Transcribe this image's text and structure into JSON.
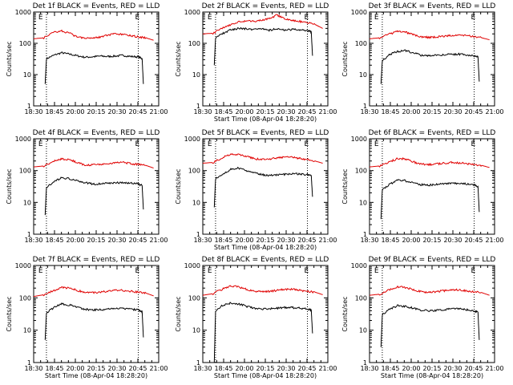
{
  "panels": [
    {
      "title": "Det 1f BLACK = Events, RED = LLD",
      "ylabel": "Counts/sec",
      "xlabel": "",
      "flag": "E"
    },
    {
      "title": "Det 2f BLACK = Events, RED = LLD",
      "ylabel": "Counts/sec",
      "xlabel": "Start Time (08-Apr-04 18:28:20)",
      "flag": "E"
    },
    {
      "title": "Det 3f BLACK = Events, RED = LLD",
      "ylabel": "Counts/sec",
      "xlabel": "",
      "flag": "E"
    },
    {
      "title": "Det 4f BLACK = Events, RED = LLD",
      "ylabel": "Counts/sec",
      "xlabel": "",
      "flag": "E"
    },
    {
      "title": "Det 5f BLACK = Events, RED = LLD",
      "ylabel": "Counts/sec",
      "xlabel": "Start Time (08-Apr-04 18:28:20)",
      "flag": "E"
    },
    {
      "title": "Det 6f BLACK = Events, RED = LLD",
      "ylabel": "Counts/sec",
      "xlabel": "",
      "flag": "E"
    },
    {
      "title": "Det 7f BLACK = Events, RED = LLD",
      "ylabel": "Counts/sec",
      "xlabel": "Start Time (08-Apr-04 18:28:20)",
      "flag": "E"
    },
    {
      "title": "Det 8f BLACK = Events, RED = LLD",
      "ylabel": "Counts/sec",
      "xlabel": "Start Time (08-Apr-04 18:28:20)",
      "flag": "E"
    },
    {
      "title": "Det 9f BLACK = Events, RED = LLD",
      "ylabel": "Counts/sec",
      "xlabel": "Start Time (08-Apr-04 18:28:20)",
      "flag": "E"
    }
  ],
  "colors": {
    "events": "#000000",
    "lld": "#e00000",
    "axes": "#000000"
  },
  "chart_data": {
    "type": "line",
    "layout": "3x3 grid",
    "x_ticks": [
      "18:30",
      "18:45",
      "20:00",
      "20:15",
      "20:30",
      "20:45",
      "21:00"
    ],
    "x_range_minutes": [
      -2,
      47
    ],
    "y_scale": "log",
    "ylim": [
      1,
      1000
    ],
    "y_ticks": [
      "1",
      "10",
      "100",
      "1000"
    ],
    "grid": false,
    "vlines_minutes": [
      3,
      39
    ],
    "panels": [
      {
        "name": "Det 1f",
        "series": [
          {
            "name": "Events",
            "x": [
              2.5,
              3,
              6,
              9,
              12,
              15,
              18,
              21,
              24,
              27,
              30,
              33,
              36,
              39,
              40.5,
              41
            ],
            "y": [
              5,
              32,
              42,
              50,
              45,
              40,
              36,
              37,
              39,
              38,
              39,
              41,
              38,
              37,
              32,
              5
            ]
          },
          {
            "name": "LLD",
            "x": [
              -2,
              2,
              6,
              9,
              12,
              15,
              18,
              21,
              24,
              27,
              30,
              33,
              36,
              39,
              42,
              45
            ],
            "y": [
              140,
              150,
              230,
              250,
              210,
              160,
              150,
              150,
              160,
              180,
              200,
              190,
              175,
              160,
              150,
              125
            ]
          }
        ]
      },
      {
        "name": "Det 2f",
        "series": [
          {
            "name": "Events",
            "x": [
              2.5,
              3,
              6,
              9,
              12,
              15,
              18,
              21,
              24,
              27,
              30,
              33,
              36,
              39,
              40.5,
              41
            ],
            "y": [
              20,
              150,
              210,
              270,
              300,
              290,
              280,
              300,
              260,
              300,
              260,
              280,
              260,
              260,
              230,
              40
            ]
          },
          {
            "name": "LLD",
            "x": [
              -2,
              2,
              6,
              9,
              12,
              15,
              18,
              21,
              24,
              27,
              30,
              33,
              36,
              39,
              42,
              45
            ],
            "y": [
              200,
              210,
              320,
              400,
              480,
              520,
              500,
              560,
              600,
              800,
              600,
              550,
              500,
              460,
              400,
              300
            ]
          }
        ]
      },
      {
        "name": "Det 3f",
        "series": [
          {
            "name": "Events",
            "x": [
              2.5,
              3,
              6,
              9,
              12,
              15,
              18,
              21,
              24,
              27,
              30,
              33,
              36,
              39,
              40.5,
              41
            ],
            "y": [
              5,
              28,
              45,
              55,
              58,
              50,
              42,
              40,
              42,
              43,
              44,
              45,
              43,
              40,
              37,
              6
            ]
          },
          {
            "name": "LLD",
            "x": [
              -2,
              2,
              6,
              9,
              12,
              15,
              18,
              21,
              24,
              27,
              30,
              33,
              36,
              39,
              42,
              45
            ],
            "y": [
              140,
              150,
              200,
              240,
              230,
              190,
              160,
              155,
              160,
              170,
              180,
              185,
              175,
              165,
              150,
              130
            ]
          }
        ]
      },
      {
        "name": "Det 4f",
        "series": [
          {
            "name": "Events",
            "x": [
              2.5,
              3,
              6,
              9,
              12,
              15,
              18,
              21,
              24,
              27,
              30,
              33,
              36,
              39,
              40.5,
              41
            ],
            "y": [
              4,
              30,
              45,
              60,
              55,
              48,
              42,
              38,
              38,
              40,
              41,
              42,
              40,
              38,
              34,
              6
            ]
          },
          {
            "name": "LLD",
            "x": [
              -2,
              2,
              6,
              9,
              12,
              15,
              18,
              21,
              24,
              27,
              30,
              33,
              36,
              39,
              42,
              45
            ],
            "y": [
              130,
              140,
              200,
              230,
              220,
              180,
              150,
              150,
              155,
              165,
              175,
              180,
              165,
              155,
              145,
              120
            ]
          }
        ]
      },
      {
        "name": "Det 5f",
        "series": [
          {
            "name": "Events",
            "x": [
              2.5,
              3,
              6,
              9,
              12,
              15,
              18,
              21,
              24,
              27,
              30,
              33,
              36,
              39,
              40.5,
              41
            ],
            "y": [
              7,
              55,
              80,
              110,
              120,
              100,
              85,
              75,
              70,
              72,
              75,
              80,
              78,
              75,
              70,
              15
            ]
          },
          {
            "name": "LLD",
            "x": [
              -2,
              2,
              6,
              9,
              12,
              15,
              18,
              21,
              24,
              27,
              30,
              33,
              36,
              39,
              42,
              45
            ],
            "y": [
              170,
              180,
              260,
              320,
              320,
              280,
              240,
              220,
              230,
              250,
              270,
              260,
              240,
              220,
              200,
              170
            ]
          }
        ]
      },
      {
        "name": "Det 6f",
        "series": [
          {
            "name": "Events",
            "x": [
              2.5,
              3,
              6,
              9,
              12,
              15,
              18,
              21,
              24,
              27,
              30,
              33,
              36,
              39,
              40.5,
              41
            ],
            "y": [
              3,
              25,
              38,
              50,
              48,
              42,
              36,
              35,
              36,
              38,
              40,
              40,
              38,
              36,
              32,
              5
            ]
          },
          {
            "name": "LLD",
            "x": [
              -2,
              2,
              6,
              9,
              12,
              15,
              18,
              21,
              24,
              27,
              30,
              33,
              36,
              39,
              42,
              45
            ],
            "y": [
              130,
              140,
              190,
              240,
              230,
              190,
              160,
              155,
              160,
              170,
              180,
              175,
              165,
              155,
              145,
              125
            ]
          }
        ]
      },
      {
        "name": "Det 7f",
        "series": [
          {
            "name": "Events",
            "x": [
              2.5,
              3,
              6,
              9,
              12,
              15,
              18,
              21,
              24,
              27,
              30,
              33,
              36,
              39,
              40.5,
              41
            ],
            "y": [
              5,
              35,
              50,
              65,
              60,
              52,
              45,
              42,
              43,
              45,
              47,
              48,
              45,
              42,
              38,
              6
            ]
          },
          {
            "name": "LLD",
            "x": [
              -2,
              2,
              6,
              9,
              12,
              15,
              18,
              21,
              24,
              27,
              30,
              33,
              36,
              39,
              42,
              45
            ],
            "y": [
              110,
              125,
              170,
              210,
              200,
              170,
              150,
              145,
              150,
              160,
              170,
              170,
              160,
              150,
              140,
              115
            ]
          }
        ]
      },
      {
        "name": "Det 8f",
        "series": [
          {
            "name": "Events",
            "x": [
              2.5,
              3,
              6,
              9,
              12,
              15,
              18,
              21,
              24,
              27,
              30,
              33,
              36,
              39,
              40.5,
              41
            ],
            "y": [
              1,
              40,
              60,
              70,
              65,
              55,
              48,
              45,
              46,
              48,
              50,
              50,
              48,
              45,
              42,
              8
            ]
          },
          {
            "name": "LLD",
            "x": [
              -2,
              2,
              6,
              9,
              12,
              15,
              18,
              21,
              24,
              27,
              30,
              33,
              36,
              39,
              42,
              45
            ],
            "y": [
              120,
              135,
              190,
              230,
              220,
              185,
              160,
              155,
              160,
              170,
              185,
              185,
              170,
              160,
              150,
              125
            ]
          }
        ]
      },
      {
        "name": "Det 9f",
        "series": [
          {
            "name": "Events",
            "x": [
              2.5,
              3,
              6,
              9,
              12,
              15,
              18,
              21,
              24,
              27,
              30,
              33,
              36,
              39,
              40.5,
              41
            ],
            "y": [
              3,
              30,
              45,
              58,
              55,
              48,
              42,
              40,
              41,
              43,
              45,
              46,
              43,
              40,
              36,
              5
            ]
          },
          {
            "name": "LLD",
            "x": [
              -2,
              2,
              6,
              9,
              12,
              15,
              18,
              21,
              24,
              27,
              30,
              33,
              36,
              39,
              42,
              45
            ],
            "y": [
              120,
              130,
              180,
              220,
              210,
              180,
              155,
              150,
              155,
              165,
              175,
              175,
              165,
              155,
              145,
              120
            ]
          }
        ]
      }
    ]
  }
}
